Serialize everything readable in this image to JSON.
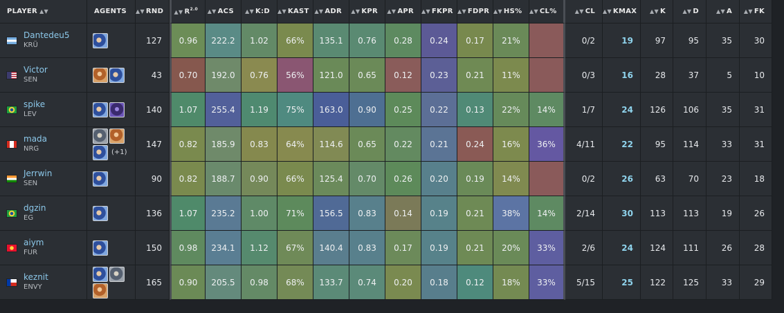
{
  "headers": {
    "player": "PLAYER",
    "agents": "AGENTS",
    "rnd": "RND",
    "rating": "R",
    "rating_ver": "2.0",
    "acs": "ACS",
    "kd": "K:D",
    "kast": "KAST",
    "adr": "ADR",
    "kpr": "KPR",
    "apr": "APR",
    "fkpr": "FKPR",
    "fdpr": "FDPR",
    "hs": "HS%",
    "clp": "CL%",
    "cl": "CL",
    "kmax": "KMAX",
    "k": "K",
    "d": "D",
    "a": "A",
    "fk": "FK"
  },
  "players": [
    {
      "name": "Dantedeu5",
      "team": "KRÜ",
      "flag": "flag-argentina-icon",
      "agents": [
        "agent-icon-1"
      ],
      "extra": "",
      "rnd": "127",
      "rating": "0.96",
      "acs": "222.2",
      "kd": "1.02",
      "kast": "66%",
      "adr": "135.1",
      "kpr": "0.76",
      "apr": "0.28",
      "fkpr": "0.24",
      "fdpr": "0.17",
      "hs": "21%",
      "clp": "",
      "cl": "0/2",
      "kmax": "19",
      "k": "97",
      "d": "95",
      "a": "35",
      "fk": "30"
    },
    {
      "name": "Victor",
      "team": "SEN",
      "flag": "flag-usa-icon",
      "agents": [
        "agent-icon-2",
        "agent-icon-1"
      ],
      "extra": "",
      "rnd": "43",
      "rating": "0.70",
      "acs": "192.0",
      "kd": "0.76",
      "kast": "56%",
      "adr": "121.0",
      "kpr": "0.65",
      "apr": "0.12",
      "fkpr": "0.23",
      "fdpr": "0.21",
      "hs": "11%",
      "clp": "",
      "cl": "0/3",
      "kmax": "16",
      "k": "28",
      "d": "37",
      "a": "5",
      "fk": "10"
    },
    {
      "name": "spike",
      "team": "LEV",
      "flag": "flag-brazil-icon",
      "agents": [
        "agent-icon-1",
        "agent-icon-3"
      ],
      "extra": "",
      "rnd": "140",
      "rating": "1.07",
      "acs": "255.4",
      "kd": "1.19",
      "kast": "75%",
      "adr": "163.0",
      "kpr": "0.90",
      "apr": "0.25",
      "fkpr": "0.22",
      "fdpr": "0.13",
      "hs": "22%",
      "clp": "14%",
      "cl": "1/7",
      "kmax": "24",
      "k": "126",
      "d": "106",
      "a": "35",
      "fk": "31"
    },
    {
      "name": "mada",
      "team": "NRG",
      "flag": "flag-canada-icon",
      "agents": [
        "agent-icon-4",
        "agent-icon-2",
        "agent-icon-1"
      ],
      "extra": "(+1)",
      "rnd": "147",
      "rating": "0.82",
      "acs": "185.9",
      "kd": "0.83",
      "kast": "64%",
      "adr": "114.6",
      "kpr": "0.65",
      "apr": "0.22",
      "fkpr": "0.21",
      "fdpr": "0.24",
      "hs": "16%",
      "clp": "36%",
      "cl": "4/11",
      "kmax": "22",
      "k": "95",
      "d": "114",
      "a": "33",
      "fk": "31"
    },
    {
      "name": "Jerrwin",
      "team": "SEN",
      "flag": "flag-india-icon",
      "agents": [
        "agent-icon-1"
      ],
      "extra": "",
      "rnd": "90",
      "rating": "0.82",
      "acs": "188.7",
      "kd": "0.90",
      "kast": "66%",
      "adr": "125.4",
      "kpr": "0.70",
      "apr": "0.26",
      "fkpr": "0.20",
      "fdpr": "0.19",
      "hs": "14%",
      "clp": "",
      "cl": "0/2",
      "kmax": "26",
      "k": "63",
      "d": "70",
      "a": "23",
      "fk": "18"
    },
    {
      "name": "dgzin",
      "team": "EG",
      "flag": "flag-brazil-icon",
      "agents": [
        "agent-icon-1"
      ],
      "extra": "",
      "rnd": "136",
      "rating": "1.07",
      "acs": "235.2",
      "kd": "1.00",
      "kast": "71%",
      "adr": "156.5",
      "kpr": "0.83",
      "apr": "0.14",
      "fkpr": "0.19",
      "fdpr": "0.21",
      "hs": "38%",
      "clp": "14%",
      "cl": "2/14",
      "kmax": "30",
      "k": "113",
      "d": "113",
      "a": "19",
      "fk": "26"
    },
    {
      "name": "aiym",
      "team": "FUR",
      "flag": "flag-kyrgyzstan-icon",
      "agents": [
        "agent-icon-1"
      ],
      "extra": "",
      "rnd": "150",
      "rating": "0.98",
      "acs": "234.1",
      "kd": "1.12",
      "kast": "67%",
      "adr": "140.4",
      "kpr": "0.83",
      "apr": "0.17",
      "fkpr": "0.19",
      "fdpr": "0.21",
      "hs": "20%",
      "clp": "33%",
      "cl": "2/6",
      "kmax": "24",
      "k": "124",
      "d": "111",
      "a": "26",
      "fk": "28"
    },
    {
      "name": "keznit",
      "team": "ENVY",
      "flag": "flag-chile-icon",
      "agents": [
        "agent-icon-1",
        "agent-icon-4",
        "agent-icon-2"
      ],
      "extra": "",
      "rnd": "165",
      "rating": "0.90",
      "acs": "205.5",
      "kd": "0.98",
      "kast": "68%",
      "adr": "133.7",
      "kpr": "0.74",
      "apr": "0.20",
      "fkpr": "0.18",
      "fdpr": "0.12",
      "hs": "18%",
      "clp": "33%",
      "cl": "5/15",
      "kmax": "25",
      "k": "122",
      "d": "125",
      "a": "33",
      "fk": "29"
    }
  ],
  "colors": {
    "rating": [
      "#6c8d57",
      "#86584e",
      "#4f8a6a",
      "#7a8a4e",
      "#7a8a4e",
      "#4f8a6a",
      "#5f8a5f",
      "#6b8a56"
    ],
    "acs": [
      "#5a8b86",
      "#6f8a6a",
      "#52609a",
      "#6f8a6a",
      "#6a8a6c",
      "#5a7a94",
      "#5a7e93",
      "#648a7c"
    ],
    "kd": [
      "#638a67",
      "#8a8a50",
      "#4f8a70",
      "#85894e",
      "#75895a",
      "#5f8a67",
      "#568a6e",
      "#648a66"
    ],
    "kast": [
      "#7a8a4e",
      "#8a5672",
      "#4f8a80",
      "#878a4f",
      "#7a8a4e",
      "#5d8a5c",
      "#6f8a58",
      "#748a56"
    ],
    "adr": [
      "#5a8a72",
      "#6a8a58",
      "#4a5e98",
      "#818a54",
      "#6b8a5b",
      "#506a96",
      "#5a7e8e",
      "#5b8a77"
    ],
    "kpr": [
      "#5a8a72",
      "#6b8a58",
      "#4e6f92",
      "#6b8a58",
      "#648a68",
      "#58808c",
      "#58808c",
      "#5b8a79"
    ],
    "apr": [
      "#5d8a60",
      "#8a5c5a",
      "#5d8a5a",
      "#638a60",
      "#5d8a5a",
      "#7b7a58",
      "#6c8a5a",
      "#7a8a50"
    ],
    "fkpr": [
      "#5c5a96",
      "#5c5f96",
      "#5c6f96",
      "#5b7495",
      "#58808c",
      "#57828a",
      "#57828a",
      "#587e8c"
    ],
    "fdpr": [
      "#78894e",
      "#6f8a54",
      "#508a76",
      "#8a5a55",
      "#6a8a58",
      "#6e8a55",
      "#6e8a55",
      "#4e8a7c"
    ],
    "hs": [
      "#6a8a58",
      "#7c8a4e",
      "#668a5a",
      "#7d8a4e",
      "#808a50",
      "#5c74a4",
      "#6a8a58",
      "#748a52"
    ],
    "clp": [
      "#8a5a5a",
      "#8a5a5a",
      "#5e8a62",
      "#6458a2",
      "#8a5a5a",
      "#5e8a62",
      "#5e5ea0",
      "#5e5ea0"
    ]
  }
}
